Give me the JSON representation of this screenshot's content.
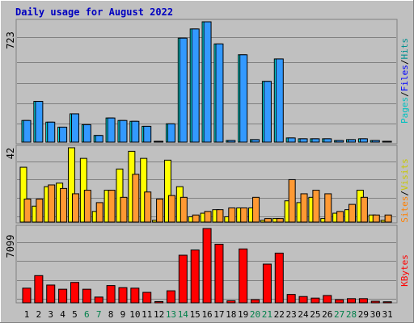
{
  "chart_data": {
    "type": "bar",
    "title": "Daily usage for August 2022",
    "categories": [
      "1",
      "2",
      "3",
      "4",
      "5",
      "6",
      "7",
      "8",
      "9",
      "10",
      "11",
      "12",
      "13",
      "14",
      "15",
      "16",
      "17",
      "18",
      "19",
      "20",
      "21",
      "22",
      "23",
      "24",
      "25",
      "26",
      "27",
      "28",
      "29",
      "30",
      "31"
    ],
    "weekend_days": [
      "6",
      "7",
      "13",
      "14",
      "20",
      "21",
      "27",
      "28"
    ],
    "panels": [
      {
        "ymax_label": "723",
        "legend": [
          "Pages",
          "/",
          "Files",
          "/",
          "Hits"
        ],
        "legend_colors": [
          "#00c0c0",
          "#000000",
          "#0000ff",
          "#000000",
          "#009090"
        ],
        "series": [
          {
            "name": "Hits",
            "color": "#00ffff",
            "values": [
              130,
              245,
              120,
              90,
              170,
              105,
              40,
              145,
              130,
              125,
              95,
              5,
              110,
              625,
              680,
              723,
              590,
              10,
              525,
              15,
              365,
              500,
              25,
              20,
              20,
              20,
              10,
              15,
              20,
              10,
              5
            ]
          },
          {
            "name": "Files",
            "color": "#3399ff",
            "values": [
              130,
              245,
              120,
              90,
              170,
              105,
              40,
              145,
              130,
              125,
              95,
              5,
              110,
              625,
              680,
              723,
              590,
              10,
              525,
              15,
              365,
              500,
              25,
              20,
              20,
              20,
              10,
              15,
              20,
              10,
              5
            ]
          }
        ]
      },
      {
        "ymax_label": "42",
        "legend": [
          "Sites",
          "/",
          "Visits"
        ],
        "legend_colors": [
          "#ff8000",
          "#000000",
          "#c8c800"
        ],
        "series": [
          {
            "name": "Visits",
            "color": "#ffff00",
            "values": [
              31,
              9,
              20,
              22,
              42,
              36,
              6,
              18,
              30,
              40,
              36,
              1,
              35,
              20,
              3,
              5,
              7,
              3,
              8,
              8,
              1,
              2,
              12,
              11,
              14,
              2,
              5,
              7,
              18,
              4,
              1
            ]
          },
          {
            "name": "Sites",
            "color": "#ff9933",
            "values": [
              13,
              13,
              21,
              19,
              16,
              18,
              11,
              18,
              14,
              27,
              17,
              13,
              15,
              14,
              4,
              6,
              7,
              8,
              8,
              14,
              2,
              2,
              24,
              16,
              18,
              16,
              6,
              10,
              14,
              4,
              4
            ]
          }
        ]
      },
      {
        "ymax_label": "7099",
        "legend": [
          "KBytes"
        ],
        "legend_colors": [
          "#ff0000"
        ],
        "series": [
          {
            "name": "KBytes",
            "color": "#ff0000",
            "values": [
              1400,
              2600,
              1700,
              1300,
              1950,
              1300,
              550,
              1650,
              1450,
              1400,
              1000,
              120,
              1150,
              4550,
              5050,
              7099,
              5600,
              200,
              5150,
              300,
              3700,
              4750,
              800,
              600,
              450,
              700,
              300,
              400,
              400,
              150,
              100
            ]
          }
        ]
      }
    ]
  }
}
